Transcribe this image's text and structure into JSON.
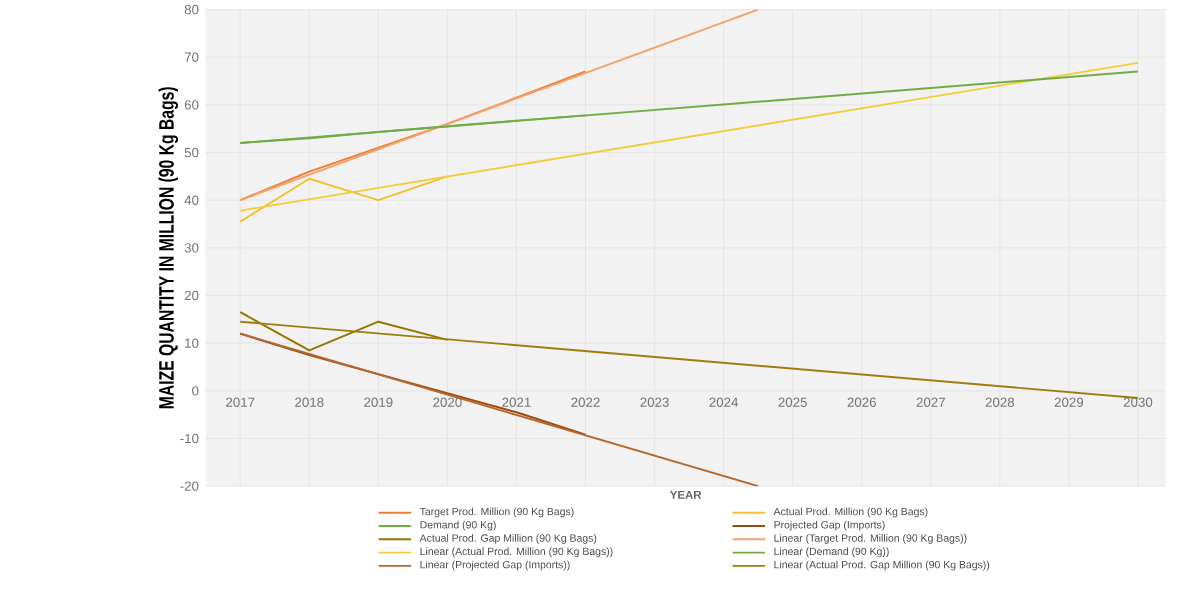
{
  "chart_data": {
    "type": "line",
    "xlabel": "YEAR",
    "ylabel": "MAIZE QUANTITY IN MILLION (90 Kg Bags)",
    "xlim": [
      2016.5,
      2030.4
    ],
    "ylim": [
      -20,
      80
    ],
    "xticks": [
      2017,
      2018,
      2019,
      2020,
      2021,
      2022,
      2023,
      2024,
      2025,
      2026,
      2027,
      2028,
      2029,
      2030
    ],
    "yticks": [
      -20,
      -10,
      0,
      10,
      20,
      30,
      40,
      50,
      60,
      70,
      80
    ],
    "grid": true,
    "legend": "bottom",
    "marker": "none",
    "line_style": "solid",
    "series": [
      {
        "name": "Target Prod. Million (90 Kg Bags)",
        "color": "#ed7d31",
        "x": [
          2017,
          2018,
          2019,
          2020,
          2021,
          2022
        ],
        "values": [
          40,
          46,
          51,
          56,
          61.5,
          67
        ]
      },
      {
        "name": "Actual Prod. Million (90 Kg Bags)",
        "color": "#f2c12e",
        "x": [
          2017,
          2018,
          2019,
          2020
        ],
        "values": [
          35.5,
          44.5,
          40,
          45
        ]
      },
      {
        "name": "Demand (90 Kg)",
        "color": "#70ad47",
        "x": [
          2017,
          2018,
          2019,
          2020,
          2021,
          2022
        ],
        "values": [
          52,
          53,
          54.3,
          55.5,
          56.7,
          57.8
        ]
      },
      {
        "name": "Projected Gap (Imports)",
        "color": "#9e480e",
        "x": [
          2017,
          2018,
          2019,
          2020,
          2021,
          2022
        ],
        "values": [
          12,
          7.5,
          3.5,
          -0.5,
          -4.5,
          -9.2
        ]
      },
      {
        "name": "Actual Prod. Gap Million (90 Kg Bags)",
        "color": "#997300",
        "x": [
          2017,
          2018,
          2019,
          2020
        ],
        "values": [
          16.5,
          8.5,
          14.5,
          10.7
        ]
      },
      {
        "name": "Linear (Target Prod. Million (90 Kg Bags))",
        "color": "#f4a26b",
        "x": [
          2017,
          2024.5
        ],
        "values": [
          40,
          80
        ]
      },
      {
        "name": "Linear (Actual Prod. Million (90 Kg Bags))",
        "color": "#f5cd3c",
        "x": [
          2017,
          2030
        ],
        "values": [
          37.8,
          68.8
        ]
      },
      {
        "name": "Linear (Demand (90 Kg))",
        "color": "#70ad47",
        "x": [
          2017,
          2030
        ],
        "values": [
          52,
          67
        ]
      },
      {
        "name": "Linear (Projected Gap (Imports))",
        "color": "#b4662c",
        "x": [
          2017,
          2024.5
        ],
        "values": [
          12,
          -20
        ]
      },
      {
        "name": "Linear (Actual Prod. Gap Million (90 Kg Bags))",
        "color": "#9e7c10",
        "x": [
          2017,
          2030
        ],
        "values": [
          14.5,
          -1.5
        ]
      }
    ]
  }
}
